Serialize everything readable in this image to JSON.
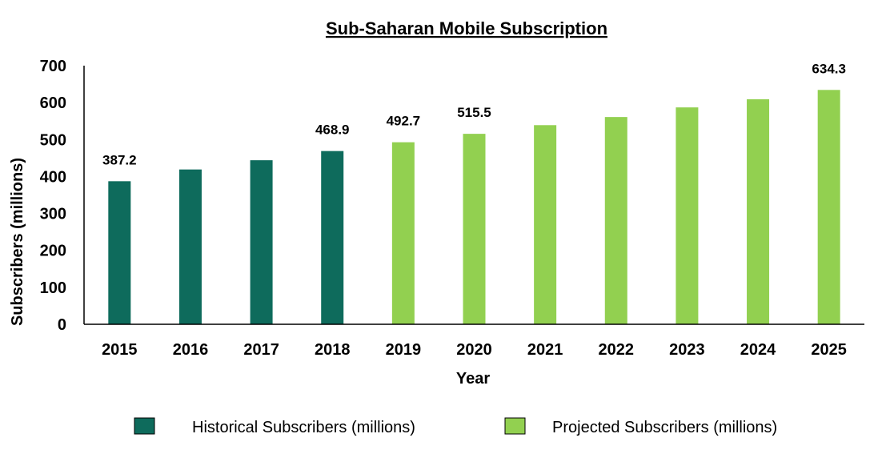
{
  "chart_data": {
    "type": "bar",
    "title": "Sub-Saharan Mobile Subscription",
    "xlabel": "Year",
    "ylabel": "Subscribers (millions)",
    "ylim": [
      0,
      700
    ],
    "yticks": [
      0,
      100,
      200,
      300,
      400,
      500,
      600,
      700
    ],
    "grid": false,
    "legend_position": "bottom",
    "categories": [
      "2015",
      "2016",
      "2017",
      "2018",
      "2019",
      "2020",
      "2021",
      "2022",
      "2023",
      "2024",
      "2025"
    ],
    "series": [
      {
        "name": "Historical Subscribers (millions)",
        "color": "#0e6b5c",
        "values": [
          387.2,
          419,
          444,
          468.9,
          null,
          null,
          null,
          null,
          null,
          null,
          null
        ],
        "data_labels": [
          "387.2",
          "",
          "",
          "468.9",
          "",
          "",
          "",
          "",
          "",
          "",
          ""
        ]
      },
      {
        "name": "Projected Subscribers (millions)",
        "color": "#92d050",
        "values": [
          null,
          null,
          null,
          null,
          492.7,
          515.5,
          539,
          561,
          587,
          609,
          634.3
        ],
        "data_labels": [
          "",
          "",
          "",
          "",
          "492.7",
          "515.5",
          "",
          "",
          "",
          "",
          "634.3"
        ]
      }
    ]
  }
}
